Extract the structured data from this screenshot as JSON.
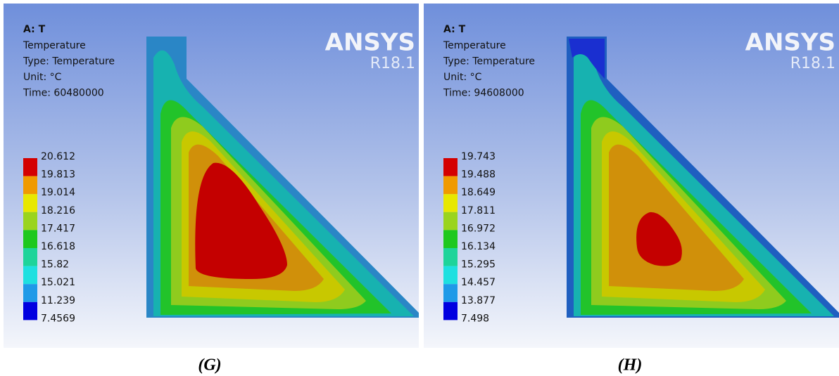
{
  "panels": [
    {
      "header": {
        "title": "A: T",
        "lines": [
          "Temperature",
          "Type: Temperature",
          "Unit: °C",
          "Time: 60480000"
        ]
      },
      "logo": {
        "name": "ANSYS",
        "version": "R18.1"
      },
      "legend": [
        "20.612",
        "19.813",
        "19.014",
        "18.216",
        "17.417",
        "16.618",
        "15.82",
        "15.021",
        "11.239",
        "7.4569"
      ],
      "caption": "(G)"
    },
    {
      "header": {
        "title": "A: T",
        "lines": [
          "Temperature",
          "Type: Temperature",
          "Unit: °C",
          "Time: 94608000"
        ]
      },
      "logo": {
        "name": "ANSYS",
        "version": "R18.1"
      },
      "legend": [
        "19.743",
        "19.488",
        "18.649",
        "17.811",
        "16.972",
        "16.134",
        "15.295",
        "14.457",
        "13.877",
        "7.498"
      ],
      "caption": "(H)"
    }
  ]
}
